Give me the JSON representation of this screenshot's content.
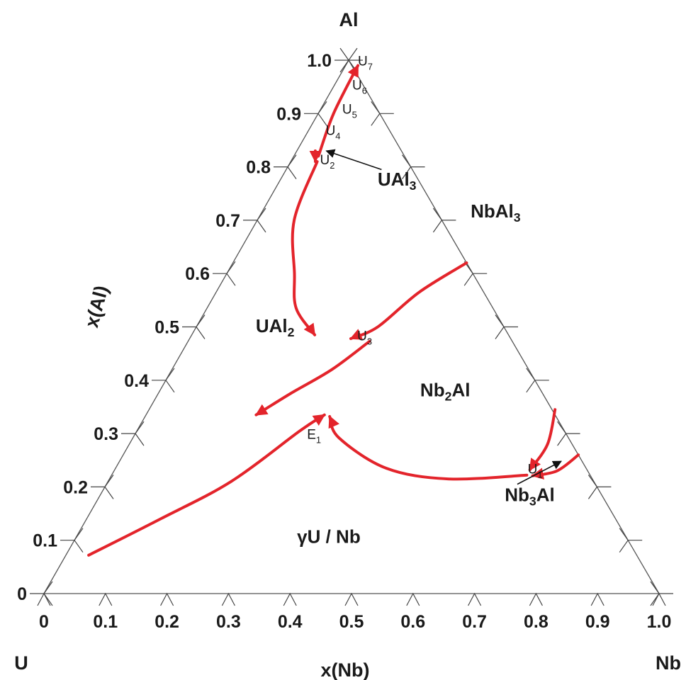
{
  "chart_data": {
    "type": "ternary_phase_diagram",
    "vertices": {
      "left": "U",
      "right": "Nb",
      "top": "Al"
    },
    "axis_labels": {
      "bottom": "x(Nb)",
      "left": "x(Al)"
    },
    "tick_labels": [
      "0",
      "0.1",
      "0.2",
      "0.3",
      "0.4",
      "0.5",
      "0.6",
      "0.7",
      "0.8",
      "0.9",
      "1.0"
    ],
    "regions": [
      {
        "name": "UAl3",
        "main": "UAl",
        "sub": "3",
        "tail": "",
        "xNb": 0.195,
        "xAl": 0.765
      },
      {
        "name": "NbAl3",
        "main": "NbAl",
        "sub": "3",
        "tail": "",
        "xNb": 0.385,
        "xAl": 0.705
      },
      {
        "name": "UAl2",
        "main": "UAl",
        "sub": "2",
        "tail": "",
        "xNb": 0.133,
        "xAl": 0.49
      },
      {
        "name": "Nb2Al",
        "main": "Nb",
        "sub": "2",
        "tail": "Al",
        "xNb": 0.469,
        "xAl": 0.37
      },
      {
        "name": "Nb3Al",
        "main": "Nb",
        "sub": "3",
        "tail": "Al",
        "xNb": 0.704,
        "xAl": 0.173
      },
      {
        "name": "γU / Nb",
        "main": "γU / Nb",
        "sub": "",
        "tail": "",
        "xNb": 0.416,
        "xAl": 0.095
      }
    ],
    "invariant_points": [
      {
        "name": "U1",
        "main": "U",
        "sub": "1",
        "xNb": 0.675,
        "xAl": 0.225
      },
      {
        "name": "U2",
        "main": "U",
        "sub": "2",
        "xNb": 0.05,
        "xAl": 0.805
      },
      {
        "name": "U3",
        "main": "U",
        "sub": "3",
        "xNb": 0.274,
        "xAl": 0.475
      },
      {
        "name": "U4",
        "main": "U",
        "sub": "4",
        "xNb": 0.032,
        "xAl": 0.86
      },
      {
        "name": "U5",
        "main": "U",
        "sub": "5",
        "xNb": 0.039,
        "xAl": 0.9
      },
      {
        "name": "U6",
        "main": "U",
        "sub": "6",
        "xNb": 0.033,
        "xAl": 0.945
      },
      {
        "name": "U7",
        "main": "U",
        "sub": "7",
        "xNb": 0.02,
        "xAl": 0.99
      },
      {
        "name": "E1",
        "main": "E",
        "sub": "1",
        "xNb": 0.284,
        "xAl": 0.29
      }
    ],
    "curves": [
      {
        "name": "UAl2-gU boundary to E1",
        "points": [
          [
            0.037,
            0.072
          ],
          [
            0.12,
            0.14
          ],
          [
            0.2,
            0.21
          ],
          [
            0.265,
            0.305
          ],
          [
            0.29,
            0.335
          ]
        ]
      },
      {
        "name": "U1 to E1",
        "points": [
          [
            0.675,
            0.222
          ],
          [
            0.55,
            0.215
          ],
          [
            0.44,
            0.235
          ],
          [
            0.335,
            0.292
          ],
          [
            0.3,
            0.332
          ]
        ]
      },
      {
        "name": "U3 to E1",
        "points": [
          [
            0.295,
            0.473
          ],
          [
            0.26,
            0.42
          ],
          [
            0.215,
            0.375
          ],
          [
            0.179,
            0.335
          ]
        ]
      },
      {
        "name": "U2 to U3",
        "points": [
          [
            0.043,
            0.81
          ],
          [
            0.06,
            0.7
          ],
          [
            0.11,
            0.6
          ],
          [
            0.145,
            0.535
          ],
          [
            0.2,
            0.485
          ]
        ]
      },
      {
        "name": "U2 to U7",
        "points": [
          [
            0.04,
            0.82
          ],
          [
            0.025,
            0.9
          ],
          [
            0.02,
            0.99
          ]
        ]
      },
      {
        "name": "U2 tie stub",
        "points": [
          [
            0.03,
            0.83
          ],
          [
            0.04,
            0.81
          ]
        ]
      },
      {
        "name": "Nb-Al edge to U3",
        "points": [
          [
            0.38,
            0.62
          ],
          [
            0.33,
            0.565
          ],
          [
            0.295,
            0.5
          ],
          [
            0.262,
            0.478
          ]
        ]
      },
      {
        "name": "Nb3Al upper edge to U1",
        "points": [
          [
            0.66,
            0.345
          ],
          [
            0.68,
            0.28
          ],
          [
            0.675,
            0.232
          ]
        ]
      },
      {
        "name": "Nb3Al lower edge to U1",
        "points": [
          [
            0.74,
            0.26
          ],
          [
            0.72,
            0.23
          ],
          [
            0.685,
            0.221
          ]
        ]
      }
    ],
    "arrows": [
      {
        "label": "UAl3",
        "from": [
          0.155,
          0.795
        ],
        "to": [
          0.048,
          0.83
        ]
      },
      {
        "label": "Nb3Al",
        "from": [
          0.668,
          0.205
        ],
        "to": [
          0.718,
          0.248
        ]
      }
    ],
    "colors": {
      "curve": "#e3242b",
      "frame": "#555555",
      "text": "#1a1a1a"
    }
  }
}
